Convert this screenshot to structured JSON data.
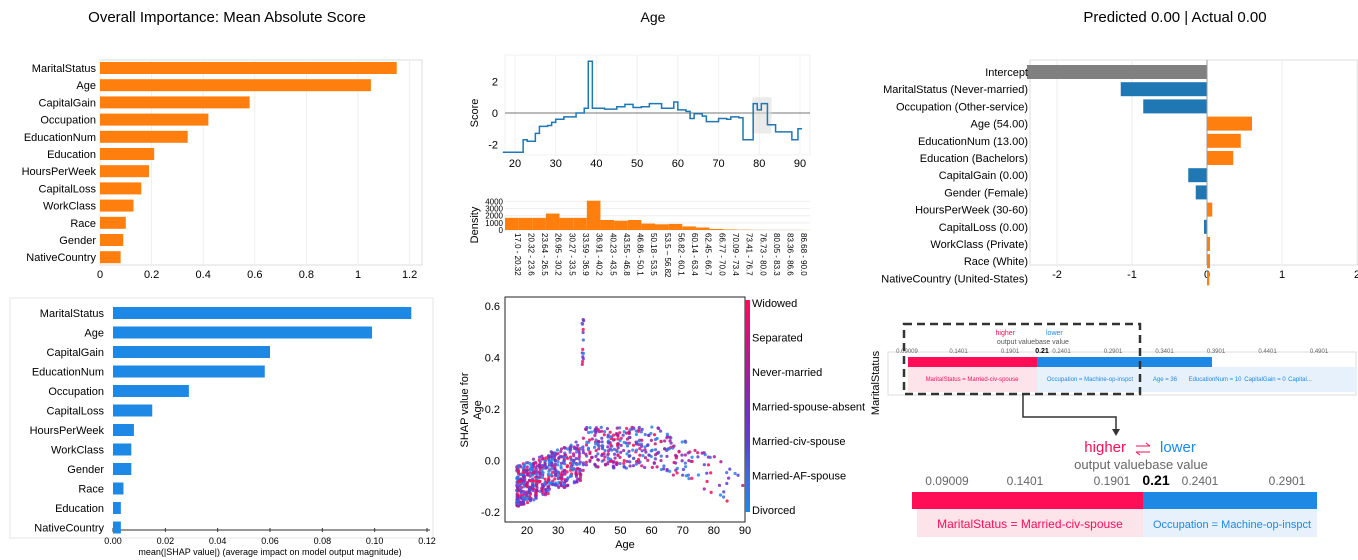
{
  "colors": {
    "orange": "#ff7f0e",
    "blue": "#1e88e5",
    "steel": "#1f77b4",
    "gray": "#808080",
    "pink": "#ff0d57",
    "shapblue": "#1e88e5"
  },
  "chart_data": [
    {
      "type": "bar",
      "title": "Overall Importance: Mean Absolute Score",
      "xlim": [
        0,
        1.2
      ],
      "xticks": [
        "0",
        "0.2",
        "0.4",
        "0.6",
        "0.8",
        "1",
        "1.2"
      ],
      "categories": [
        "MaritalStatus",
        "Age",
        "CapitalGain",
        "Occupation",
        "EducationNum",
        "Education",
        "HoursPerWeek",
        "CapitalLoss",
        "WorkClass",
        "Race",
        "Gender",
        "NativeCountry"
      ],
      "values": [
        1.15,
        1.05,
        0.58,
        0.42,
        0.34,
        0.21,
        0.19,
        0.16,
        0.13,
        0.1,
        0.09,
        0.08
      ],
      "orientation": "horizontal",
      "grid": true
    },
    {
      "type": "line",
      "title": "Age",
      "ylabel": "Score",
      "xlim": [
        17,
        91
      ],
      "ylim": [
        -2.6,
        3.5
      ],
      "xticks": [
        "20",
        "30",
        "40",
        "50",
        "60",
        "70",
        "80",
        "90"
      ],
      "yticks": [
        "2",
        "0",
        "-2"
      ],
      "steps": [
        [
          17,
          -2.5
        ],
        [
          22,
          -1.7
        ],
        [
          23,
          -1.8
        ],
        [
          25,
          -1.3
        ],
        [
          26,
          -0.85
        ],
        [
          28,
          -0.8
        ],
        [
          29,
          -0.6
        ],
        [
          30,
          -0.4
        ],
        [
          32,
          -0.25
        ],
        [
          35,
          0
        ],
        [
          37,
          0.3
        ],
        [
          38,
          3.3
        ],
        [
          39,
          0.3
        ],
        [
          42,
          0.25
        ],
        [
          45,
          0.4
        ],
        [
          47,
          0.55
        ],
        [
          49,
          0.35
        ],
        [
          51,
          0.4
        ],
        [
          53,
          0.6
        ],
        [
          56,
          0.3
        ],
        [
          59,
          0.7
        ],
        [
          60,
          0.2
        ],
        [
          62,
          0.1
        ],
        [
          63,
          -0.35
        ],
        [
          64,
          -0.05
        ],
        [
          66,
          -0.2
        ],
        [
          67,
          -0.55
        ],
        [
          70,
          -0.35
        ],
        [
          72,
          -0.4
        ],
        [
          73,
          -0.25
        ],
        [
          75,
          -0.3
        ],
        [
          76,
          -1.7
        ],
        [
          78.5,
          0.6
        ],
        [
          79.5,
          0.2
        ],
        [
          80.5,
          0.6
        ],
        [
          82,
          -0.75
        ],
        [
          84,
          -1.2
        ],
        [
          88,
          -1.7
        ],
        [
          89.5,
          -1.0
        ],
        [
          90.5,
          -1.0
        ]
      ]
    },
    {
      "type": "bar",
      "ylabel": "Density",
      "yticks": [
        "4000",
        "3000",
        "2000",
        "1000",
        "0"
      ],
      "ylim": [
        0,
        4200
      ],
      "categories": [
        "17.0 - 20.32",
        "20.32 - 23.6",
        "23.64 - 26.5",
        "26.95 - 30.2",
        "30.27 - 33.5",
        "33.59 - 36.9",
        "36.91 - 40.2",
        "40.23 - 43.5",
        "43.55 - 46.8",
        "46.86 - 50.1",
        "50.18 - 53.5",
        "53.5 – 56.82",
        "56.82 - 60.1",
        "60.14 - 63.4",
        "62.45 - 66.7",
        "66.77 - 70.0",
        "70.09 - 73.4",
        "73.41 - 76.7",
        "76.73 - 80.0",
        "80.05 - 83.3",
        "83.36 - 86.6",
        "86.68 - 90.0"
      ],
      "values": [
        1700,
        1700,
        1700,
        2300,
        1700,
        1700,
        4100,
        1400,
        1300,
        1400,
        900,
        800,
        850,
        500,
        350,
        150,
        80,
        40,
        20,
        10,
        10,
        10
      ]
    },
    {
      "type": "bar",
      "title": "Predicted 0.00 | Actual 0.00",
      "xlim": [
        -2.4,
        2.1
      ],
      "xticks": [
        "-2",
        "-1",
        "0",
        "1",
        "2"
      ],
      "categories": [
        "Intercept",
        "MaritalStatus (Never-married)",
        "Occupation (Other-service)",
        "Age (54.00)",
        "EducationNum (13.00)",
        "Education (Bachelors)",
        "CapitalGain (0.00)",
        "Gender (Female)",
        "HoursPerWeek (30-60)",
        "CapitalLoss (0.00)",
        "WorkClass (Private)",
        "Race (White)",
        "NativeCountry (United-States)"
      ],
      "values": [
        -2.4,
        -1.15,
        -0.85,
        0.6,
        0.45,
        0.35,
        -0.25,
        -0.15,
        0.07,
        -0.04,
        0.04,
        0.04,
        0.03
      ]
    },
    {
      "type": "bar",
      "xlabel": "mean(|SHAP value|) (average impact on model output magnitude)",
      "xlim": [
        0,
        0.12
      ],
      "xticks": [
        "0.00",
        "0.02",
        "0.04",
        "0.06",
        "0.08",
        "0.10",
        "0.12"
      ],
      "categories": [
        "MaritalStatus",
        "Age",
        "CapitalGain",
        "EducationNum",
        "Occupation",
        "CapitalLoss",
        "HoursPerWeek",
        "WorkClass",
        "Gender",
        "Race",
        "Education",
        "NativeCountry"
      ],
      "values": [
        0.114,
        0.099,
        0.06,
        0.058,
        0.029,
        0.015,
        0.008,
        0.007,
        0.007,
        0.004,
        0.003,
        0.003
      ]
    },
    {
      "type": "scatter",
      "xlabel": "Age",
      "ylabel": "SHAP value for\nAge",
      "xlim": [
        15,
        92
      ],
      "ylim": [
        -0.3,
        0.62
      ],
      "xticks": [
        "20",
        "30",
        "40",
        "50",
        "60",
        "70",
        "80",
        "90"
      ],
      "yticks": [
        "0.6",
        "0.4",
        "0.2",
        "0.0",
        "-0.2"
      ],
      "trend": [
        [
          17,
          -0.12
        ],
        [
          25,
          -0.1
        ],
        [
          30,
          -0.05
        ],
        [
          35,
          0.0
        ],
        [
          38,
          0.45
        ],
        [
          40,
          0.05
        ],
        [
          50,
          0.07
        ],
        [
          60,
          0.05
        ],
        [
          70,
          -0.03
        ],
        [
          80,
          -0.06
        ],
        [
          90,
          -0.1
        ]
      ],
      "colorbar": [
        "Widowed",
        "Separated",
        "Never-married",
        "Married-spouse-absent",
        "Married-civ-spouse",
        "Married-AF-spouse",
        "Divorced"
      ]
    },
    {
      "type": "force",
      "side_label": "MaritalStatus",
      "higher": "higher",
      "lower": "lower",
      "output_label": "output value",
      "base_label": "base value",
      "output_value": "0.21",
      "ticks_small": [
        "0.09009",
        "0.1401",
        "0.1901",
        "0.2401",
        "0.2901",
        "0.3401",
        "0.3901",
        "0.4401",
        "0.4901"
      ],
      "ticks_large": [
        "0.09009",
        "0.1401",
        "0.1901",
        "0.2401",
        "0.2901"
      ],
      "features_small": [
        "MaritalStatus = Married-civ-spouse",
        "Occupation = Machine-op-inspct",
        "Age = 36",
        "EducationNum = 10",
        "CapitalGain = 0",
        "Capital..."
      ],
      "features_large": [
        "MaritalStatus = Married-civ-spouse",
        "Occupation = Machine-op-inspct"
      ]
    }
  ]
}
